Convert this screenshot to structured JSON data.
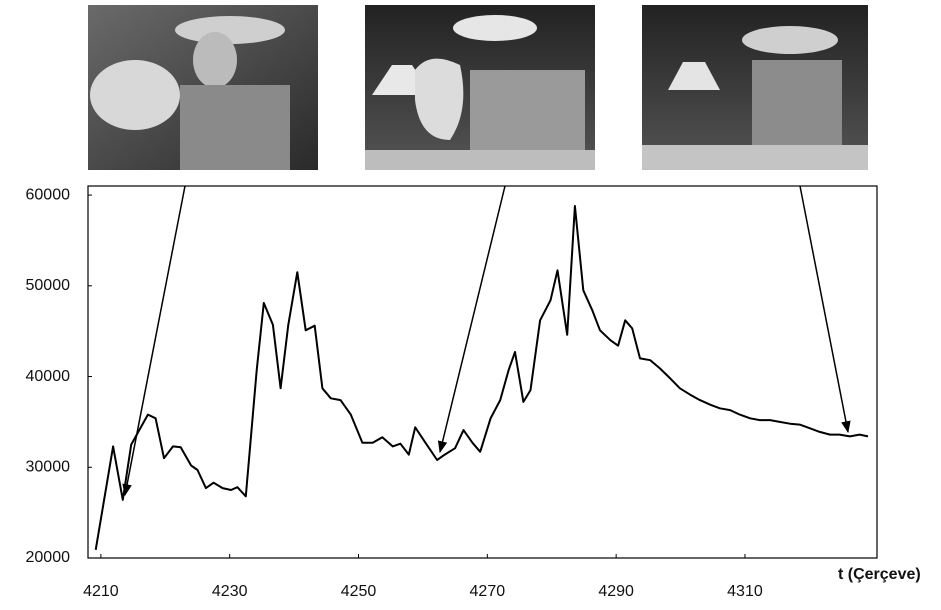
{
  "chart_data": {
    "type": "line",
    "x_label": "t (Çerçeve)",
    "xlim": [
      4208,
      4330.5
    ],
    "xticks": [
      4210,
      4230,
      4250,
      4270,
      4290,
      4310
    ],
    "ylim": [
      20000,
      61000
    ],
    "yticks": [
      20000,
      30000,
      40000,
      50000,
      60000
    ],
    "color": "#000000",
    "x": [
      4209.2,
      4211.9,
      4213.4,
      4214.7,
      4217.3,
      4218.5,
      4219.8,
      4221.2,
      4222.4,
      4224.0,
      4225.0,
      4226.3,
      4227.5,
      4228.9,
      4230.2,
      4231.2,
      4232.5,
      4234.2,
      4235.3,
      4236.7,
      4237.9,
      4239.1,
      4240.5,
      4241.8,
      4243.2,
      4244.4,
      4245.7,
      4247.2,
      4248.8,
      4250.6,
      4252.2,
      4253.7,
      4255.3,
      4256.5,
      4257.8,
      4258.8,
      4260.4,
      4262.2,
      4263.4,
      4265.0,
      4266.3,
      4267.7,
      4268.9,
      4270.5,
      4272.0,
      4273.3,
      4274.3,
      4275.6,
      4276.7,
      4278.2,
      4279.8,
      4280.9,
      4282.4,
      4283.6,
      4284.9,
      4286.3,
      4287.5,
      4289.1,
      4290.3,
      4291.4,
      4292.5,
      4293.7,
      4295.3,
      4296.8,
      4298.4,
      4299.9,
      4301.5,
      4303.0,
      4304.6,
      4306.1,
      4307.7,
      4309.2,
      4310.8,
      4312.3,
      4313.9,
      4315.4,
      4317.0,
      4318.5,
      4320.1,
      4321.6,
      4323.2,
      4324.7,
      4326.3,
      4327.8,
      4329.1
    ],
    "values": [
      20900,
      32300,
      26400,
      32500,
      35800,
      35400,
      31000,
      32300,
      32200,
      30200,
      29700,
      27700,
      28300,
      27700,
      27500,
      27800,
      26800,
      40700,
      48100,
      45700,
      38700,
      45700,
      51500,
      45100,
      45600,
      38700,
      37600,
      37400,
      35800,
      32700,
      32700,
      33300,
      32300,
      32600,
      31400,
      34400,
      32700,
      30800,
      31400,
      32100,
      34100,
      32700,
      31700,
      35400,
      37400,
      40700,
      42700,
      37200,
      38500,
      46200,
      48400,
      51700,
      44600,
      58800,
      49500,
      47300,
      45100,
      44000,
      43400,
      46200,
      45300,
      42000,
      41800,
      40900,
      39800,
      38700,
      38000,
      37400,
      36900,
      36500,
      36300,
      35800,
      35400,
      35200,
      35200,
      35000,
      34800,
      34700,
      34300,
      33900,
      33600,
      33600,
      33400,
      33600,
      33400
    ]
  }
}
